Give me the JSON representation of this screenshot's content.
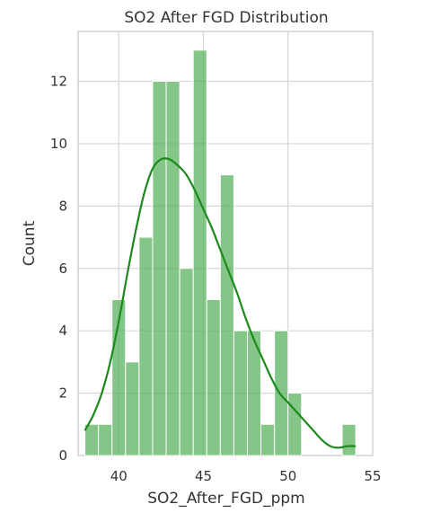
{
  "chart_data": {
    "type": "bar",
    "title": "SO2 After FGD Distribution",
    "xlabel": "SO2_After_FGD_ppm",
    "ylabel": "Count",
    "xlim": [
      37.6,
      55.0
    ],
    "ylim": [
      0,
      13.6
    ],
    "xticks": [
      "40",
      "45",
      "50",
      "55"
    ],
    "yticks": [
      "0",
      "2",
      "4",
      "6",
      "8",
      "10",
      "12"
    ],
    "grid": true,
    "legend": "none",
    "bar_color": "#55b05a",
    "kde_color": "#1b8a1b",
    "bins": [
      {
        "x0": 38.0,
        "x1": 38.8,
        "count": 1
      },
      {
        "x0": 38.8,
        "x1": 39.6,
        "count": 1
      },
      {
        "x0": 39.6,
        "x1": 40.4,
        "count": 5
      },
      {
        "x0": 40.4,
        "x1": 41.2,
        "count": 3
      },
      {
        "x0": 41.2,
        "x1": 42.0,
        "count": 7
      },
      {
        "x0": 42.0,
        "x1": 42.8,
        "count": 12
      },
      {
        "x0": 42.8,
        "x1": 43.6,
        "count": 12
      },
      {
        "x0": 43.6,
        "x1": 44.4,
        "count": 6
      },
      {
        "x0": 44.4,
        "x1": 45.2,
        "count": 13
      },
      {
        "x0": 45.2,
        "x1": 46.0,
        "count": 5
      },
      {
        "x0": 46.0,
        "x1": 46.8,
        "count": 9
      },
      {
        "x0": 46.8,
        "x1": 47.6,
        "count": 4
      },
      {
        "x0": 47.6,
        "x1": 48.4,
        "count": 4
      },
      {
        "x0": 48.4,
        "x1": 49.2,
        "count": 1
      },
      {
        "x0": 49.2,
        "x1": 50.0,
        "count": 4
      },
      {
        "x0": 50.0,
        "x1": 50.8,
        "count": 2
      },
      {
        "x0": 50.8,
        "x1": 51.6,
        "count": 0
      },
      {
        "x0": 51.6,
        "x1": 52.4,
        "count": 0
      },
      {
        "x0": 52.4,
        "x1": 53.2,
        "count": 0
      },
      {
        "x0": 53.2,
        "x1": 54.0,
        "count": 1
      }
    ],
    "kde": {
      "x": [
        38.0,
        38.5,
        39.0,
        39.5,
        40.0,
        40.5,
        41.0,
        41.5,
        42.0,
        42.5,
        43.0,
        43.5,
        44.0,
        44.5,
        45.0,
        45.5,
        46.0,
        46.5,
        47.0,
        47.5,
        48.0,
        48.5,
        49.0,
        49.5,
        50.0,
        50.5,
        51.0,
        51.5,
        52.0,
        52.5,
        53.0,
        53.5,
        54.0
      ],
      "y": [
        0.8,
        1.3,
        2.0,
        3.0,
        4.3,
        5.8,
        7.2,
        8.4,
        9.2,
        9.5,
        9.5,
        9.3,
        9.0,
        8.5,
        7.9,
        7.3,
        6.6,
        5.9,
        5.2,
        4.4,
        3.7,
        3.1,
        2.5,
        2.0,
        1.7,
        1.4,
        1.1,
        0.8,
        0.5,
        0.3,
        0.25,
        0.3,
        0.3
      ]
    }
  }
}
